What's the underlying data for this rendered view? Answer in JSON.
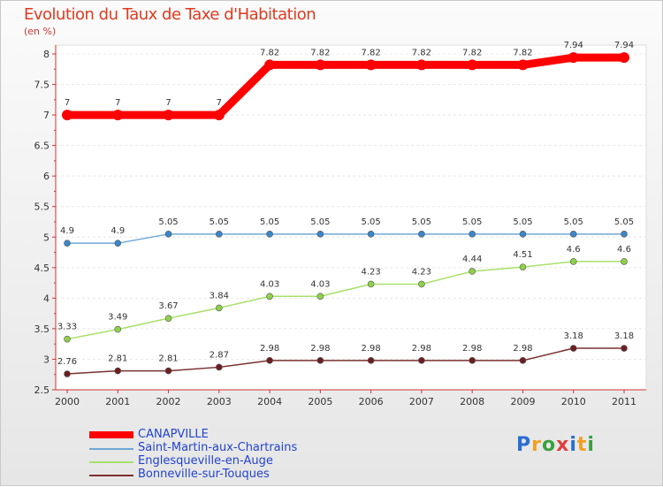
{
  "chart_data": {
    "type": "line",
    "title": "Evolution du Taux de Taxe d'Habitation",
    "subtitle": "(en %)",
    "xlabel": "",
    "ylabel": "(en %)",
    "ylim": [
      2.5,
      8
    ],
    "yticks": [
      "2.5",
      "3",
      "3.5",
      "4",
      "4.5",
      "5",
      "5.5",
      "6",
      "6.5",
      "7",
      "7.5",
      "8"
    ],
    "categories": [
      "2000",
      "2001",
      "2002",
      "2003",
      "2004",
      "2005",
      "2006",
      "2007",
      "2008",
      "2009",
      "2010",
      "2011"
    ],
    "series": [
      {
        "name": "CANAPVILLE",
        "color": "#ff0000",
        "values": [
          7,
          7,
          7,
          7,
          7.82,
          7.82,
          7.82,
          7.82,
          7.82,
          7.82,
          7.94,
          7.94
        ],
        "labels": [
          "7",
          "7",
          "7",
          "7",
          "7.82",
          "7.82",
          "7.82",
          "7.82",
          "7.82",
          "7.82",
          "7.94",
          "7.94"
        ]
      },
      {
        "name": "Saint-Martin-aux-Chartrains",
        "color": "#6fa8d8",
        "values": [
          4.9,
          4.9,
          5.05,
          5.05,
          5.05,
          5.05,
          5.05,
          5.05,
          5.05,
          5.05,
          5.05,
          5.05
        ],
        "labels": [
          "4.9",
          "4.9",
          "5.05",
          "5.05",
          "5.05",
          "5.05",
          "5.05",
          "5.05",
          "5.05",
          "5.05",
          "5.05",
          "5.05"
        ]
      },
      {
        "name": "Englesqueville-en-Auge",
        "color": "#a8e06a",
        "values": [
          3.33,
          3.49,
          3.67,
          3.84,
          4.03,
          4.03,
          4.23,
          4.23,
          4.44,
          4.51,
          4.6,
          4.6
        ],
        "labels": [
          "3.33",
          "3.49",
          "3.67",
          "3.84",
          "4.03",
          "4.03",
          "4.23",
          "4.23",
          "4.44",
          "4.51",
          "4.6",
          "4.6"
        ]
      },
      {
        "name": "Bonneville-sur-Touques",
        "color": "#7a3030",
        "values": [
          2.76,
          2.81,
          2.81,
          2.87,
          2.98,
          2.98,
          2.98,
          2.98,
          2.98,
          2.98,
          3.18,
          3.18
        ],
        "labels": [
          "2.76",
          "2.81",
          "2.81",
          "2.87",
          "2.98",
          "2.98",
          "2.98",
          "2.98",
          "2.98",
          "2.98",
          "3.18",
          "3.18"
        ]
      }
    ],
    "legend_position": "bottom-left"
  },
  "branding": {
    "logo_text": "Proxiti"
  }
}
